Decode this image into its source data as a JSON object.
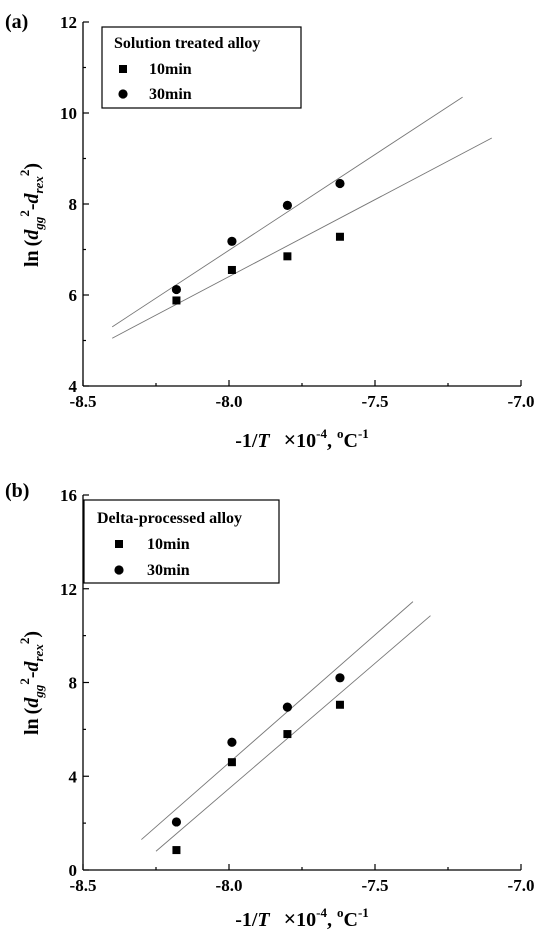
{
  "chart_data": [
    {
      "type": "scatter",
      "panel_label": "(a)",
      "legend_title": "Solution treated alloy",
      "xlim": [
        -8.5,
        -7.0
      ],
      "ylim": [
        4,
        12
      ],
      "x_ticks": [
        -8.5,
        -8.0,
        -7.5,
        -7.0
      ],
      "x_tick_labels": [
        "-8.5",
        "-8.0",
        "-7.5",
        "-7.0"
      ],
      "y_ticks": [
        4,
        6,
        8,
        10,
        12
      ],
      "y_tick_labels": [
        "4",
        "6",
        "8",
        "10",
        "12"
      ],
      "xlabel": "-1/T ×10-4, oC-1",
      "ylabel": "ln (dgg2-drex2)",
      "series": [
        {
          "name": "10min",
          "marker": "square",
          "x": [
            -8.18,
            -7.99,
            -7.8,
            -7.62
          ],
          "y": [
            5.88,
            6.55,
            6.85,
            7.28
          ],
          "fit": {
            "x": [
              -8.4,
              -7.1
            ],
            "y": [
              5.05,
              9.45
            ]
          }
        },
        {
          "name": "30min",
          "marker": "circle",
          "x": [
            -8.18,
            -7.99,
            -7.8,
            -7.62
          ],
          "y": [
            6.12,
            7.18,
            7.97,
            8.45
          ],
          "fit": {
            "x": [
              -8.4,
              -7.2
            ],
            "y": [
              5.3,
              10.35
            ]
          }
        }
      ]
    },
    {
      "type": "scatter",
      "panel_label": "(b)",
      "legend_title": "Delta-processed alloy",
      "xlim": [
        -8.5,
        -7.0
      ],
      "ylim": [
        0,
        16
      ],
      "x_ticks": [
        -8.5,
        -8.0,
        -7.5,
        -7.0
      ],
      "x_tick_labels": [
        "-8.5",
        "-8.0",
        "-7.5",
        "-7.0"
      ],
      "y_ticks": [
        0,
        4,
        8,
        12,
        16
      ],
      "y_tick_labels": [
        "0",
        "4",
        "8",
        "12",
        "16"
      ],
      "xlabel": "-1/T ×10-4, oC-1",
      "ylabel": "ln (dgg2-drex2)",
      "series": [
        {
          "name": "10min",
          "marker": "square",
          "x": [
            -8.18,
            -7.99,
            -7.8,
            -7.62
          ],
          "y": [
            0.85,
            4.6,
            5.8,
            7.05
          ],
          "fit": {
            "x": [
              -8.25,
              -7.31
            ],
            "y": [
              0.8,
              10.85
            ]
          }
        },
        {
          "name": "30min",
          "marker": "circle",
          "x": [
            -8.18,
            -7.99,
            -7.8,
            -7.62
          ],
          "y": [
            2.05,
            5.45,
            6.95,
            8.2
          ],
          "fit": {
            "x": [
              -8.3,
              -7.37
            ],
            "y": [
              1.3,
              11.45
            ]
          }
        }
      ]
    }
  ]
}
